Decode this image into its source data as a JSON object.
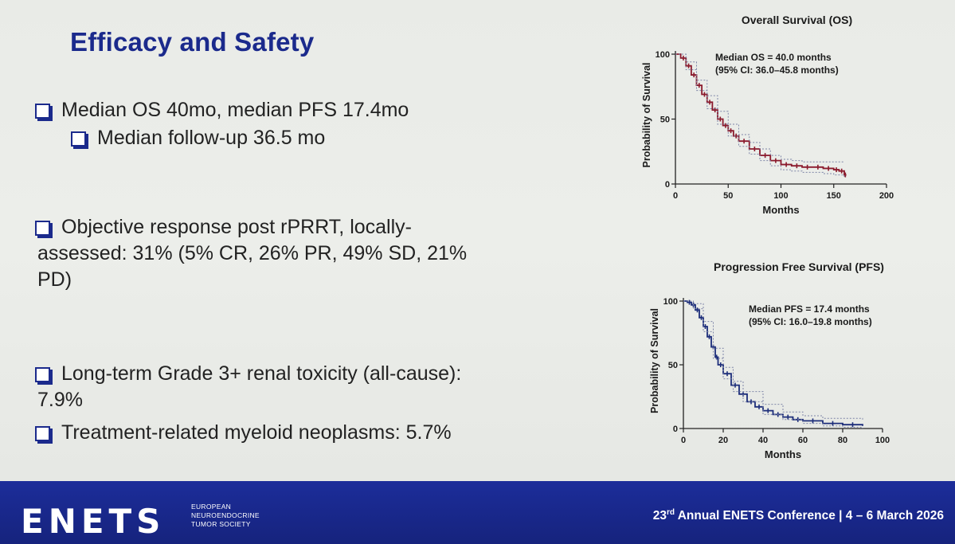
{
  "slide": {
    "title": "Efficacy and Safety",
    "bullets": [
      {
        "text": "Median OS 40mo, median PFS 17.4mo"
      },
      {
        "text": "Median follow-up 36.5 mo"
      },
      {
        "line1": "Objective response post rPRRT, locally-",
        "line2": "assessed: 31% (5% CR, 26% PR, 49% SD, 21%",
        "line3": "PD)"
      },
      {
        "line1": "Long-term Grade 3+ renal toxicity (all-cause):",
        "line2": "7.9%"
      },
      {
        "text": "Treatment-related myeloid neoplasms: 5.7%"
      }
    ]
  },
  "chart_data": [
    {
      "type": "line",
      "title": "Overall Survival (OS)",
      "xlabel": "Months",
      "ylabel": "Probability of Survival",
      "xlim": [
        0,
        200
      ],
      "ylim": [
        0,
        100
      ],
      "xticks": [
        0,
        50,
        100,
        150,
        200
      ],
      "xtick_labels": [
        "0",
        "50",
        "100",
        "150",
        "200"
      ],
      "yticks": [
        0,
        50,
        100
      ],
      "ytick_labels": [
        "0",
        "50",
        "100"
      ],
      "annotation": [
        "Median OS = 40.0 months",
        "(95% CI: 36.0–45.8 months)"
      ],
      "color": "#8b1a2c",
      "ci_color": "#7f86a8",
      "series": [
        {
          "name": "OS",
          "x": [
            0,
            5,
            10,
            15,
            20,
            25,
            30,
            35,
            40,
            45,
            50,
            55,
            60,
            70,
            80,
            90,
            100,
            110,
            120,
            130,
            140,
            150,
            155,
            160,
            162
          ],
          "y": [
            100,
            97,
            91,
            84,
            76,
            69,
            63,
            57,
            50,
            45,
            41,
            37,
            33,
            27,
            22,
            18,
            15,
            14,
            13,
            13,
            12,
            11,
            10,
            7,
            7
          ]
        },
        {
          "name": "95% CI upper",
          "x": [
            0,
            10,
            20,
            30,
            40,
            50,
            60,
            70,
            80,
            90,
            100,
            110,
            120,
            130,
            140,
            150,
            160
          ],
          "y": [
            100,
            94,
            80,
            68,
            56,
            46,
            38,
            32,
            27,
            22,
            19,
            18,
            17,
            17,
            17,
            17,
            17
          ]
        },
        {
          "name": "95% CI lower",
          "x": [
            0,
            10,
            20,
            30,
            40,
            50,
            60,
            70,
            80,
            90,
            100,
            110,
            120,
            130,
            140,
            150,
            160
          ],
          "y": [
            100,
            88,
            72,
            58,
            46,
            37,
            29,
            23,
            18,
            14,
            11,
            10,
            9,
            9,
            8,
            7,
            5
          ]
        }
      ]
    },
    {
      "type": "line",
      "title": "Progression Free Survival (PFS)",
      "xlabel": "Months",
      "ylabel": "Probability of Survival",
      "xlim": [
        0,
        100
      ],
      "ylim": [
        0,
        100
      ],
      "xticks": [
        0,
        20,
        40,
        60,
        80,
        100
      ],
      "xtick_labels": [
        "0",
        "20",
        "40",
        "60",
        "80",
        "100"
      ],
      "yticks": [
        0,
        50,
        100
      ],
      "ytick_labels": [
        "0",
        "50",
        "100"
      ],
      "annotation": [
        "Median PFS = 17.4 months",
        "(95% CI: 16.0–19.8 months)"
      ],
      "color": "#1c2d7a",
      "ci_color": "#7f86a8",
      "series": [
        {
          "name": "PFS",
          "x": [
            0,
            2,
            4,
            6,
            8,
            10,
            12,
            14,
            16,
            17.4,
            20,
            24,
            28,
            32,
            36,
            40,
            45,
            50,
            55,
            60,
            70,
            80,
            90
          ],
          "y": [
            100,
            99,
            97,
            93,
            87,
            80,
            72,
            64,
            56,
            50,
            43,
            34,
            27,
            21,
            17,
            14,
            11,
            9,
            7,
            6,
            4,
            3,
            2
          ]
        },
        {
          "name": "95% CI upper",
          "x": [
            0,
            5,
            10,
            15,
            20,
            25,
            30,
            40,
            50,
            60,
            70,
            80,
            90
          ],
          "y": [
            100,
            98,
            84,
            63,
            48,
            37,
            29,
            19,
            13,
            10,
            8,
            8,
            7
          ]
        },
        {
          "name": "95% CI lower",
          "x": [
            0,
            5,
            10,
            15,
            20,
            25,
            30,
            40,
            50,
            60,
            70,
            80,
            90
          ],
          "y": [
            100,
            94,
            76,
            55,
            39,
            29,
            21,
            11,
            7,
            4,
            2,
            1,
            0
          ]
        }
      ]
    }
  ],
  "footer": {
    "logo": "ENETS",
    "society_line1": "EUROPEAN",
    "society_line2": "NEUROENDOCRINE",
    "society_line3": "TUMOR SOCIETY",
    "conf_ordinal_num": "23",
    "conf_ordinal_suffix": "rd",
    "conf_rest": " Annual ENETS Conference | 4 – 6 March 2026"
  }
}
